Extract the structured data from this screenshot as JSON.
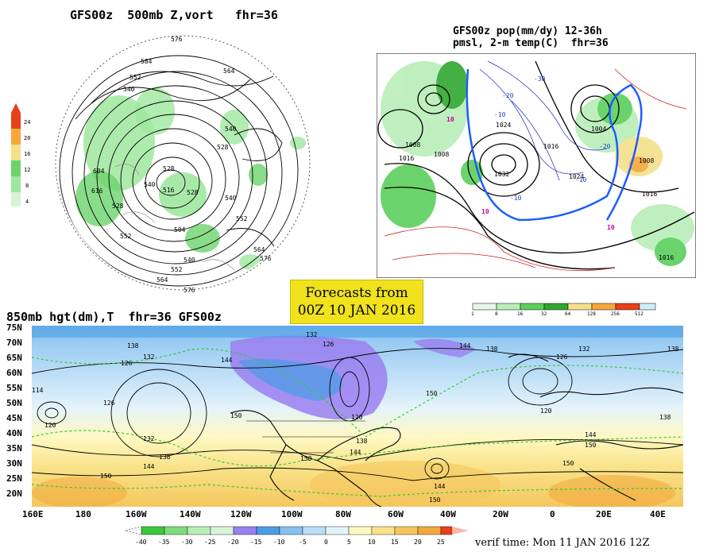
{
  "panel_polar": {
    "title": "GFS00z  500mb Z,vort   fhr=36",
    "contour_labels": [
      "576",
      "584",
      "552",
      "564",
      "540",
      "540",
      "528",
      "548",
      "504",
      "516",
      "528",
      "516",
      "528",
      "540",
      "552",
      "564",
      "576",
      "552",
      "516",
      "540",
      "564"
    ],
    "colorbar": {
      "ticks": [
        "24",
        "20",
        "16",
        "12",
        "8",
        "4"
      ],
      "colors": [
        "#e8401a",
        "#f5a83b",
        "#f5e08a",
        "#6bd36b",
        "#9ee79e",
        "#d6f5d6"
      ]
    }
  },
  "panel_namerica": {
    "title_line1": "GFS00z pop(mm/dy) 12-36h",
    "title_line2": "pmsl, 2-m temp(C)  fhr=36",
    "contour_labels": [
      "1008",
      "1016",
      "1024",
      "1032",
      "1020",
      "1008",
      "1016",
      "1024",
      "1004",
      "1016",
      "1016"
    ],
    "temp_labels": [
      "-10",
      "-20",
      "-30",
      "-10",
      "-20",
      "0",
      "10",
      "10",
      "10",
      "20"
    ],
    "colorbar": {
      "ticks": [
        "1",
        "8",
        "16",
        "32",
        "64",
        "128",
        "256",
        "512"
      ],
      "colors": [
        "#e8f8e8",
        "#b9eeb9",
        "#5ccf5c",
        "#2fa82f",
        "#f5e08a",
        "#f5a83b",
        "#e8401a",
        "#cdeff7"
      ]
    }
  },
  "banner": {
    "line1": "Forecasts from",
    "line2": "00Z 10 JAN 2016"
  },
  "panel_850": {
    "title": "850mb hgt(dm),T  fhr=36 GFS00z",
    "lat_labels": [
      "75N",
      "70N",
      "65N",
      "60N",
      "55N",
      "50N",
      "45N",
      "40N",
      "35N",
      "30N",
      "25N",
      "20N"
    ],
    "lon_labels": [
      "160E",
      "180",
      "160W",
      "140W",
      "120W",
      "100W",
      "80W",
      "60W",
      "40W",
      "20W",
      "0",
      "20E",
      "40E"
    ],
    "height_labels": [
      "138",
      "132",
      "126",
      "114",
      "120",
      "126",
      "132",
      "138",
      "144",
      "150",
      "144",
      "150",
      "138",
      "132",
      "126",
      "120",
      "138",
      "144",
      "150",
      "144",
      "150",
      "132",
      "126",
      "138",
      "144",
      "150",
      "120"
    ],
    "colorbar": {
      "ticks": [
        "-40",
        "-35",
        "-30",
        "-25",
        "-20",
        "-15",
        "-10",
        "-5",
        "0",
        "5",
        "10",
        "15",
        "20",
        "25"
      ],
      "colors": [
        "#3cc83c",
        "#7ddb7d",
        "#b9eeb9",
        "#d9f3d9",
        "#9a7ff0",
        "#4a9ce6",
        "#86c1ef",
        "#b9dcf7",
        "#e3f3fb",
        "#fff8c2",
        "#f9e38a",
        "#f5c65e",
        "#f0a83a",
        "#e8401a"
      ]
    }
  },
  "verif_time": "verif time: Mon 11 JAN 2016 12Z"
}
